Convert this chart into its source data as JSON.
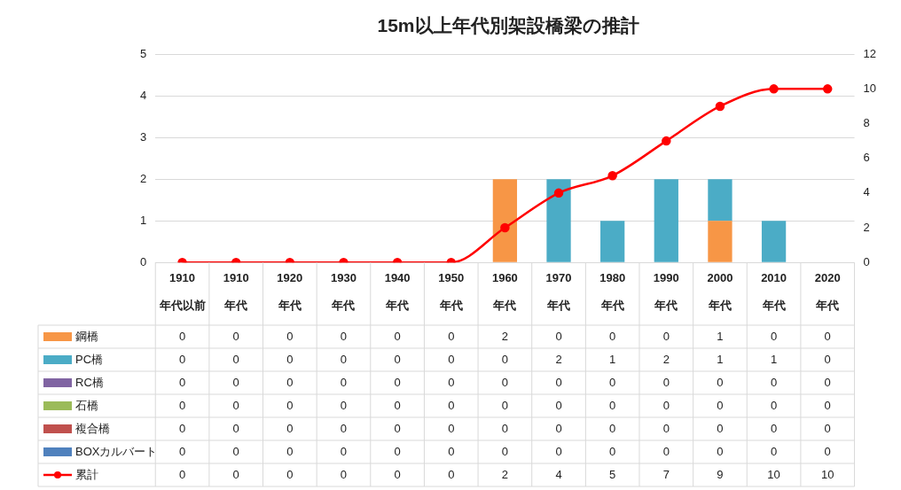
{
  "chart_data": {
    "type": "bar",
    "title": "15m以上年代別架設橋梁の推計",
    "categories": [
      "1910年代以前",
      "1910年代",
      "1920年代",
      "1930年代",
      "1940年代",
      "1950年代",
      "1960年代",
      "1970年代",
      "1980年代",
      "1990年代",
      "2000年代",
      "2010年代",
      "2020年代"
    ],
    "stacked": true,
    "series": [
      {
        "name": "鋼橋",
        "color": "#f79646",
        "values": [
          0,
          0,
          0,
          0,
          0,
          0,
          2,
          0,
          0,
          0,
          1,
          0,
          0
        ]
      },
      {
        "name": "PC橋",
        "color": "#4bacc6",
        "values": [
          0,
          0,
          0,
          0,
          0,
          0,
          0,
          2,
          1,
          2,
          1,
          1,
          0
        ]
      },
      {
        "name": "RC橋",
        "color": "#8064a2",
        "values": [
          0,
          0,
          0,
          0,
          0,
          0,
          0,
          0,
          0,
          0,
          0,
          0,
          0
        ]
      },
      {
        "name": "石橋",
        "color": "#9bbb59",
        "values": [
          0,
          0,
          0,
          0,
          0,
          0,
          0,
          0,
          0,
          0,
          0,
          0,
          0
        ]
      },
      {
        "name": "複合橋",
        "color": "#c0504d",
        "values": [
          0,
          0,
          0,
          0,
          0,
          0,
          0,
          0,
          0,
          0,
          0,
          0,
          0
        ]
      },
      {
        "name": "BOXカルバート",
        "color": "#4f81bd",
        "values": [
          0,
          0,
          0,
          0,
          0,
          0,
          0,
          0,
          0,
          0,
          0,
          0,
          0
        ]
      },
      {
        "name": "累計",
        "type": "line",
        "axis": "y2",
        "color": "#ff0000",
        "values": [
          0,
          0,
          0,
          0,
          0,
          0,
          2,
          4,
          5,
          7,
          9,
          10,
          10
        ]
      }
    ],
    "ylim": [
      0,
      5
    ],
    "yticks": [
      0,
      1,
      2,
      3,
      4,
      5
    ],
    "y2lim": [
      0,
      12
    ],
    "y2ticks": [
      0,
      2,
      4,
      6,
      8,
      10,
      12
    ],
    "grid": "y",
    "legend": "bottom",
    "marker": "circle",
    "line_style": "solid",
    "data_labels": true
  }
}
